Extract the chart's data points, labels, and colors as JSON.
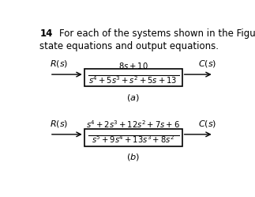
{
  "title_num": "14",
  "title_text": "For each of the systems shown in the Figure, find the",
  "title_text2": "state equations and output equations.",
  "bg_color": "#ffffff",
  "text_color": "#000000",
  "block_a_num": "$8s + 10$",
  "block_a_den": "$s^4 + 5s^3 + s^2 + 5s + 13$",
  "block_b_num": "$s^4 + 2s^3 + 12s^2 + 7s + 6$",
  "block_b_den": "$s^5 + 9s^4 + 13s^3 + 8s^2$",
  "label_Rs": "$R(s)$",
  "label_Cs": "$C(s)$"
}
